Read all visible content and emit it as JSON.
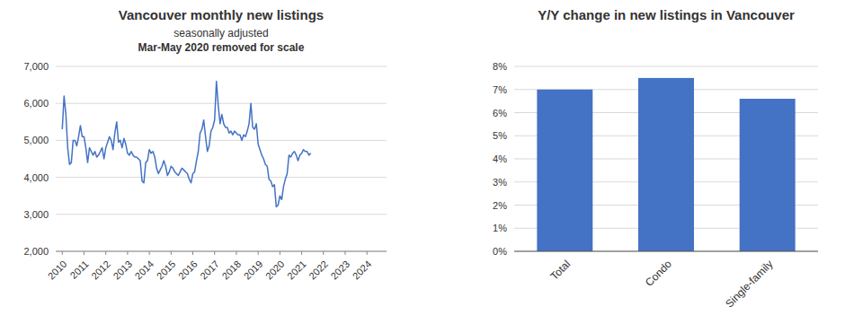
{
  "chart_data": [
    {
      "type": "line",
      "title": "Vancouver monthly new listings",
      "subtitle": [
        "seasonally adjusted",
        "Mar-May 2020 removed for scale"
      ],
      "x": [
        2010,
        2010.0833,
        2010.1667,
        2010.25,
        2010.3333,
        2010.4167,
        2010.5,
        2010.5833,
        2010.6667,
        2010.75,
        2010.8333,
        2010.9167,
        2011,
        2011.0833,
        2011.1667,
        2011.25,
        2011.3333,
        2011.4167,
        2011.5,
        2011.5833,
        2011.6667,
        2011.75,
        2011.8333,
        2011.9167,
        2012,
        2012.0833,
        2012.1667,
        2012.25,
        2012.3333,
        2012.4167,
        2012.5,
        2012.5833,
        2012.6667,
        2012.75,
        2012.8333,
        2012.9167,
        2013,
        2013.0833,
        2013.1667,
        2013.25,
        2013.3333,
        2013.4167,
        2013.5,
        2013.5833,
        2013.6667,
        2013.75,
        2013.8333,
        2013.9167,
        2014,
        2014.0833,
        2014.1667,
        2014.25,
        2014.3333,
        2014.4167,
        2014.5,
        2014.5833,
        2014.6667,
        2014.75,
        2014.8333,
        2014.9167,
        2015,
        2015.0833,
        2015.1667,
        2015.25,
        2015.3333,
        2015.4167,
        2015.5,
        2015.5833,
        2015.6667,
        2015.75,
        2015.8333,
        2015.9167,
        2016,
        2016.0833,
        2016.1667,
        2016.25,
        2016.3333,
        2016.4167,
        2016.5,
        2016.5833,
        2016.6667,
        2016.75,
        2016.8333,
        2016.9167,
        2017,
        2017.0833,
        2017.1667,
        2017.25,
        2017.3333,
        2017.4167,
        2017.5,
        2017.5833,
        2017.6667,
        2017.75,
        2017.8333,
        2017.9167,
        2018,
        2018.0833,
        2018.1667,
        2018.25,
        2018.3333,
        2018.4167,
        2018.5,
        2018.5833,
        2018.6667,
        2018.75,
        2018.8333,
        2018.9167,
        2019,
        2019.0833,
        2019.1667,
        2019.25,
        2019.3333,
        2019.4167,
        2019.5,
        2019.5833,
        2019.6667,
        2019.75,
        2019.8333,
        2019.9167,
        2020,
        2020.0833,
        2020.1667,
        2020.25,
        2020.3333,
        2020.4167,
        2020.5,
        2020.5833,
        2020.6667,
        2020.75,
        2020.8333,
        2020.9167,
        2021,
        2021.0833,
        2021.1667,
        2021.25,
        2021.3333,
        2021.4167
      ],
      "values": [
        5300,
        6200,
        5700,
        4800,
        4350,
        4400,
        5000,
        5000,
        4850,
        5100,
        5400,
        5100,
        5100,
        4800,
        4400,
        4800,
        4700,
        4600,
        4700,
        4550,
        4600,
        4700,
        4800,
        4500,
        4800,
        4950,
        5100,
        5000,
        4750,
        5200,
        5500,
        4950,
        5000,
        4800,
        5050,
        4900,
        4650,
        4600,
        4700,
        4600,
        4550,
        4550,
        4500,
        4450,
        3900,
        3850,
        4400,
        4450,
        4750,
        4650,
        4700,
        4550,
        4250,
        4100,
        4200,
        4300,
        4450,
        4300,
        4050,
        4150,
        4300,
        4250,
        4150,
        4100,
        4050,
        4150,
        4250,
        4200,
        4150,
        4100,
        3950,
        3850,
        4100,
        4150,
        4450,
        4700,
        5200,
        5300,
        5550,
        5100,
        4700,
        4850,
        5250,
        5350,
        5550,
        6600,
        5950,
        5450,
        5700,
        5450,
        5350,
        5350,
        5200,
        5250,
        5150,
        5250,
        5200,
        5150,
        5150,
        5000,
        5150,
        5100,
        5250,
        5450,
        6000,
        5350,
        5300,
        5450,
        4900,
        4750,
        4600,
        4500,
        4350,
        4300,
        3950,
        3900,
        3750,
        3800,
        3200,
        3250,
        3500,
        3400,
        3750,
        3950,
        4100,
        4600,
        4550,
        4650,
        4700,
        4600,
        4450,
        4600,
        4650,
        4750,
        4700,
        4700,
        4600,
        4650
      ],
      "color": "#4472C4",
      "xlim": [
        2009.7,
        2024.9
      ],
      "xticks": [
        2010,
        2011,
        2012,
        2013,
        2014,
        2015,
        2016,
        2017,
        2018,
        2019,
        2020,
        2021,
        2022,
        2023,
        2024
      ],
      "ylim": [
        2000,
        7000
      ],
      "yticks": [
        {
          "value": 2000,
          "label": "2,000"
        },
        {
          "value": 3000,
          "label": "3,000"
        },
        {
          "value": 4000,
          "label": "4,000"
        },
        {
          "value": 5000,
          "label": "5,000"
        },
        {
          "value": 6000,
          "label": "6,000"
        },
        {
          "value": 7000,
          "label": "7,000"
        }
      ],
      "grid": true
    },
    {
      "type": "bar",
      "title": "Y/Y change in new listings in Vancouver",
      "categories": [
        "Total",
        "Condo",
        "Single-family"
      ],
      "values": [
        0.07,
        0.075,
        0.066
      ],
      "color": "#4472C4",
      "ylim": [
        0,
        0.08
      ],
      "yticks": [
        {
          "value": 0,
          "label": "0%"
        },
        {
          "value": 0.01,
          "label": "1%"
        },
        {
          "value": 0.02,
          "label": "2%"
        },
        {
          "value": 0.03,
          "label": "3%"
        },
        {
          "value": 0.04,
          "label": "4%"
        },
        {
          "value": 0.05,
          "label": "5%"
        },
        {
          "value": 0.06,
          "label": "6%"
        },
        {
          "value": 0.07,
          "label": "7%"
        },
        {
          "value": 0.08,
          "label": "8%"
        }
      ],
      "grid": true
    }
  ]
}
